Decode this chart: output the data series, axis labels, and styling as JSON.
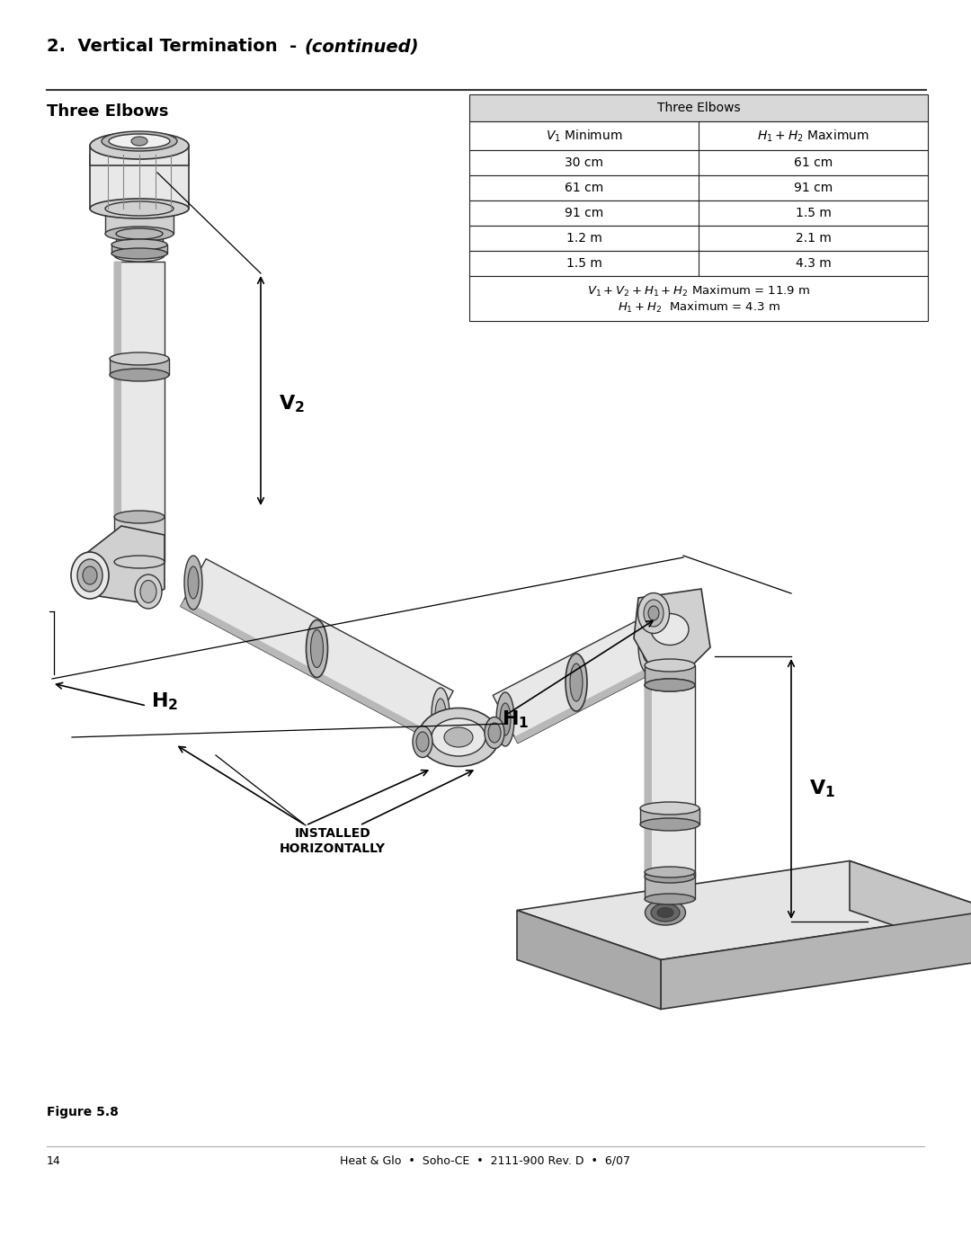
{
  "title_normal": "2.  Vertical Termination  - ",
  "title_italic": "(continued)",
  "section_label": "Three Elbows",
  "table_header": "Three Elbows",
  "col1_header": "V₁ Minimum",
  "col2_header": "H₁ + H₂ Maximum",
  "table_rows": [
    [
      "30 cm",
      "61 cm"
    ],
    [
      "61 cm",
      "91 cm"
    ],
    [
      "91 cm",
      "1.5 m"
    ],
    [
      "1.2 m",
      "2.1 m"
    ],
    [
      "1.5 m",
      "4.3 m"
    ]
  ],
  "footer_line1": "$V_1 + V_2 + H_1 + H_2$ Maximum = 11.9 m",
  "footer_line2": "$H_1 + H_2$  Maximum = 4.3 m",
  "figure_label": "Figure 5.8",
  "page_footer": "Heat & Glo  •  Soho-CE  •  2111-900 Rev. D  •  6/07",
  "page_number": "14",
  "bg": "#ffffff",
  "table_hdr_bg": "#d8d8d8",
  "border": "#222222",
  "black": "#000000",
  "gray1": "#e8e8e8",
  "gray2": "#d0d0d0",
  "gray3": "#b8b8b8",
  "gray4": "#a0a0a0",
  "edge": "#333333"
}
